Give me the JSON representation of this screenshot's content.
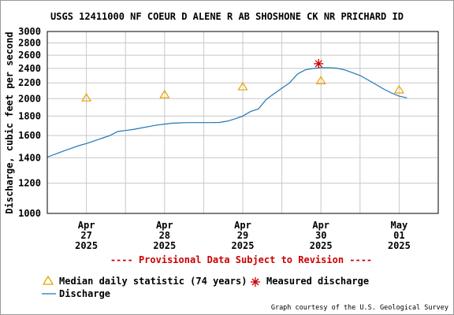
{
  "chart_data": {
    "type": "line",
    "title": "USGS 12411000 NF COEUR D ALENE R AB SHOSHONE CK NR PRICHARD ID",
    "xlabel": "",
    "ylabel": "Discharge, cubic feet per second",
    "y_scale": "log",
    "ylim": [
      1000,
      3000
    ],
    "y_ticks": [
      1000,
      1200,
      1400,
      1600,
      1800,
      2000,
      2200,
      2400,
      2600,
      2800,
      3000
    ],
    "x_ticks": [
      {
        "line1": "Apr",
        "line2": "27",
        "line3": "2025",
        "day": 0
      },
      {
        "line1": "Apr",
        "line2": "28",
        "line3": "2025",
        "day": 1
      },
      {
        "line1": "Apr",
        "line2": "29",
        "line3": "2025",
        "day": 2
      },
      {
        "line1": "Apr",
        "line2": "30",
        "line3": "2025",
        "day": 3
      },
      {
        "line1": "May",
        "line2": "01",
        "line3": "2025",
        "day": 4
      }
    ],
    "xlim": [
      -0.5,
      4.5
    ],
    "grid": true,
    "series": [
      {
        "name": "Discharge",
        "color": "#1f77b4",
        "style": "line",
        "x": [
          -0.5,
          -0.4,
          -0.3,
          -0.2,
          -0.1,
          0.0,
          0.1,
          0.2,
          0.3,
          0.4,
          0.5,
          0.6,
          0.7,
          0.8,
          0.9,
          1.0,
          1.1,
          1.2,
          1.3,
          1.4,
          1.5,
          1.6,
          1.7,
          1.8,
          1.9,
          2.0,
          2.1,
          2.2,
          2.3,
          2.4,
          2.5,
          2.6,
          2.7,
          2.8,
          2.9,
          3.0,
          3.1,
          3.2,
          3.3,
          3.4,
          3.5,
          3.6,
          3.7,
          3.8,
          3.9,
          4.0,
          4.1
        ],
        "y": [
          1405,
          1430,
          1455,
          1480,
          1505,
          1525,
          1550,
          1575,
          1600,
          1640,
          1650,
          1660,
          1675,
          1690,
          1705,
          1715,
          1725,
          1728,
          1730,
          1730,
          1730,
          1730,
          1732,
          1745,
          1770,
          1800,
          1850,
          1880,
          1990,
          2060,
          2130,
          2200,
          2320,
          2380,
          2400,
          2410,
          2410,
          2405,
          2380,
          2340,
          2300,
          2240,
          2180,
          2120,
          2070,
          2030,
          2010
        ]
      },
      {
        "name": "Median daily statistic (74 years)",
        "color": "#e8a200",
        "style": "triangle",
        "x": [
          0.0,
          1.0,
          2.0,
          3.0,
          4.0
        ],
        "y": [
          2010,
          2050,
          2150,
          2230,
          2110
        ]
      },
      {
        "name": "Measured discharge",
        "color": "#cc0000",
        "style": "asterisk",
        "x": [
          2.97
        ],
        "y": [
          2470
        ]
      }
    ],
    "annotations": {
      "provisional": "---- Provisional Data Subject to Revision ----",
      "credit": "Graph courtesy of the U.S. Geological Survey"
    },
    "legend": [
      {
        "label": "Median daily statistic (74 years)",
        "symbol": "triangle",
        "color": "#e8a200"
      },
      {
        "label": "Measured discharge",
        "symbol": "asterisk",
        "color": "#cc0000"
      },
      {
        "label": "Discharge",
        "symbol": "line",
        "color": "#1f77b4"
      }
    ],
    "legend_placement": "bottom-left"
  }
}
